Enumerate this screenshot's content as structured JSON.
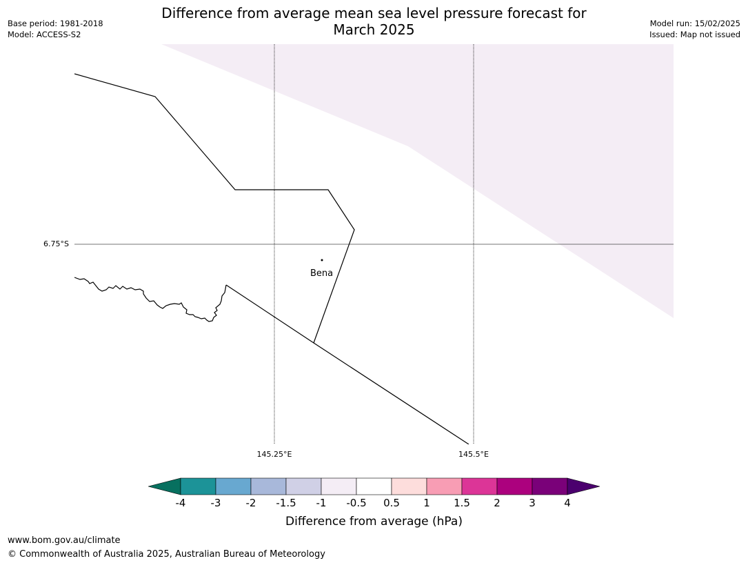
{
  "header": {
    "title_line1": "Difference from average mean sea level pressure forecast for",
    "title_line2": "March 2025",
    "base_period": "Base period: 1981-2018",
    "model": "Model: ACCESS-S2",
    "model_run": "Model run: 15/02/2025",
    "issued": "Issued: Map not issued"
  },
  "map": {
    "lat_label": "6.75°S",
    "lon_labels": [
      "145.25°E",
      "145.5°E"
    ],
    "place_label": "Bena",
    "shaded_region_color": "#f4edf5"
  },
  "legend": {
    "title": "Difference from average (hPa)",
    "ticks": [
      "-4",
      "-3",
      "-2",
      "-1.5",
      "-1",
      "-0.5",
      "0.5",
      "1",
      "1.5",
      "2",
      "3",
      "4"
    ],
    "colors": [
      "#07705f",
      "#1c9398",
      "#68a8d0",
      "#a8b8da",
      "#d0d0e6",
      "#f4edf5",
      "#ffffff",
      "#fddddc",
      "#f89db4",
      "#dc3597",
      "#ac017e",
      "#7a0179",
      "#4b006e"
    ]
  },
  "footer": {
    "url": "www.bom.gov.au/climate",
    "copyright": "© Commonwealth of Australia 2025, Australian Bureau of Meteorology"
  }
}
